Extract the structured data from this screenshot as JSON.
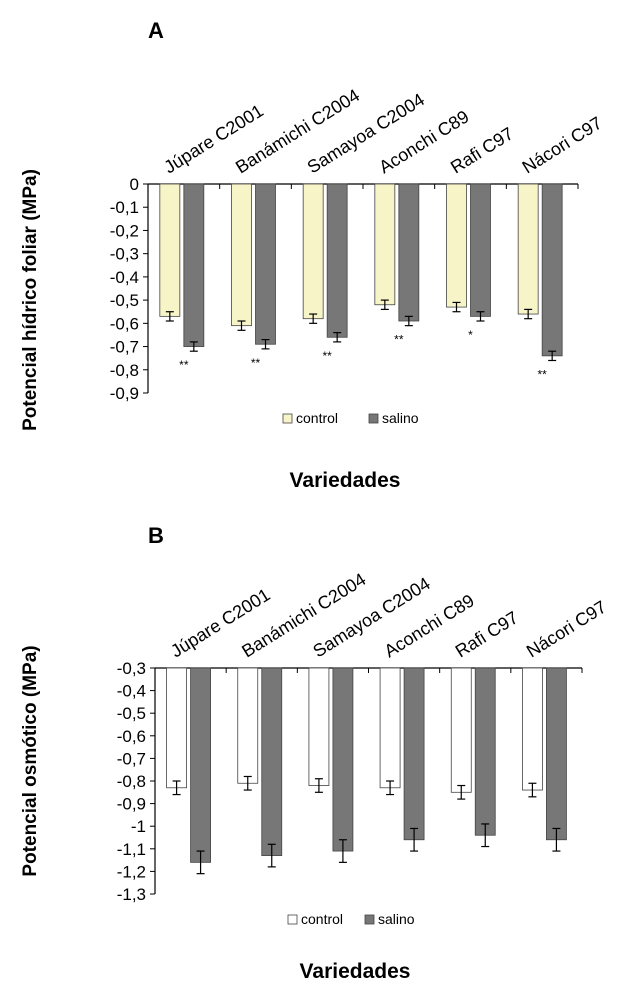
{
  "chart_data": [
    {
      "panel": "A",
      "type": "bar",
      "categories": [
        "Júpare C2001",
        "Banámichi C2004",
        "Samayoa C2004",
        "Aconchi C89",
        "Rafi C97",
        "Nácori C97"
      ],
      "series": [
        {
          "name": "control",
          "color": "#f7f5c8",
          "values": [
            -0.57,
            -0.61,
            -0.58,
            -0.52,
            -0.53,
            -0.56
          ],
          "errors": [
            0.02,
            0.02,
            0.02,
            0.02,
            0.02,
            0.02
          ]
        },
        {
          "name": "salino",
          "color": "#777777",
          "values": [
            -0.7,
            -0.69,
            -0.66,
            -0.59,
            -0.57,
            -0.74
          ],
          "errors": [
            0.02,
            0.02,
            0.02,
            0.02,
            0.02,
            0.02
          ]
        }
      ],
      "significance": [
        "**",
        "**",
        "**",
        "**",
        "*",
        "**"
      ],
      "ylabel": "Potencial hídrico foliar (MPa)",
      "xlabel": "Variedades",
      "ylim": [
        -0.9,
        0
      ],
      "yticks": [
        "0",
        "-0,1",
        "-0,2",
        "-0,3",
        "-0,4",
        "-0,5",
        "-0,6",
        "-0,7",
        "-0,8",
        "-0,9"
      ],
      "legend": "bottom-center"
    },
    {
      "panel": "B",
      "type": "bar",
      "categories": [
        "Júpare C2001",
        "Banámichi C2004",
        "Samayoa C2004",
        "Aconchi C89",
        "Rafi C97",
        "Nácori C97"
      ],
      "series": [
        {
          "name": "control",
          "color": "#ffffff",
          "values": [
            -0.83,
            -0.81,
            -0.82,
            -0.83,
            -0.85,
            -0.84
          ],
          "errors": [
            0.03,
            0.03,
            0.03,
            0.03,
            0.03,
            0.03
          ]
        },
        {
          "name": "salino",
          "color": "#777777",
          "values": [
            -1.16,
            -1.13,
            -1.11,
            -1.06,
            -1.04,
            -1.06
          ],
          "errors": [
            0.05,
            0.05,
            0.05,
            0.05,
            0.05,
            0.05
          ]
        }
      ],
      "ylabel": "Potencial osmótico (MPa)",
      "xlabel": "Variedades",
      "ylim": [
        -1.3,
        -0.3
      ],
      "yticks": [
        "-0,3",
        "-0,4",
        "-0,5",
        "-0,6",
        "-0,7",
        "-0,8",
        "-0,9",
        "-1",
        "-1,1",
        "-1,2",
        "-1,3"
      ],
      "legend": "bottom-center"
    }
  ]
}
